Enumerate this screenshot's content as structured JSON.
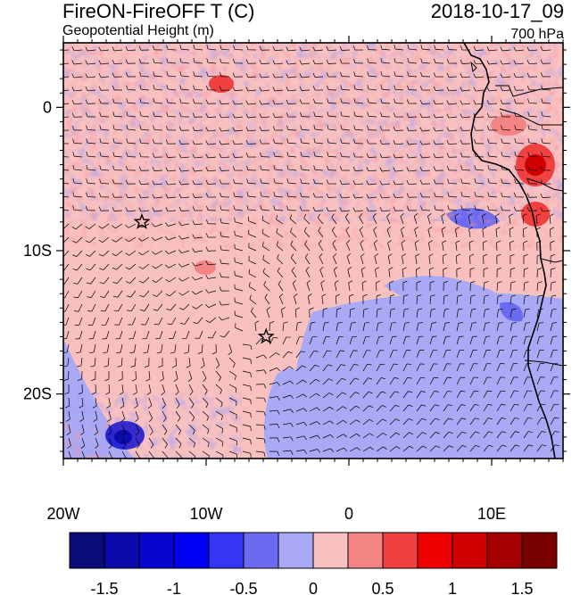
{
  "header": {
    "title": "FireON-FireOFF T (C)",
    "datetime": "2018-10-17_09",
    "subtitle": "Geopotential Height (m)",
    "level": "700 hPa"
  },
  "map": {
    "lon_ticks": [
      "20W",
      "10W",
      "0",
      "10E"
    ],
    "lat_ticks": [
      "0",
      "10S",
      "20S"
    ],
    "lon_range": [
      -20,
      15
    ],
    "lat_range": [
      -24.5,
      4.5
    ],
    "markers": [
      {
        "name": "star-marker-west",
        "lon": -14.5,
        "lat": -8.0
      },
      {
        "name": "star-marker-center",
        "lon": -5.8,
        "lat": -16.0
      }
    ]
  },
  "colorbar": {
    "labels": [
      "-1.5",
      "-1",
      "-0.5",
      "0",
      "0.5",
      "1",
      "1.5"
    ],
    "colors": [
      "#0a0a7a",
      "#0b0bab",
      "#0606d0",
      "#0000f5",
      "#3535f5",
      "#6b6bf2",
      "#a9a9f5",
      "#f9c0c0",
      "#f58585",
      "#f04040",
      "#ee0000",
      "#d00000",
      "#a50000",
      "#7a0000"
    ]
  }
}
